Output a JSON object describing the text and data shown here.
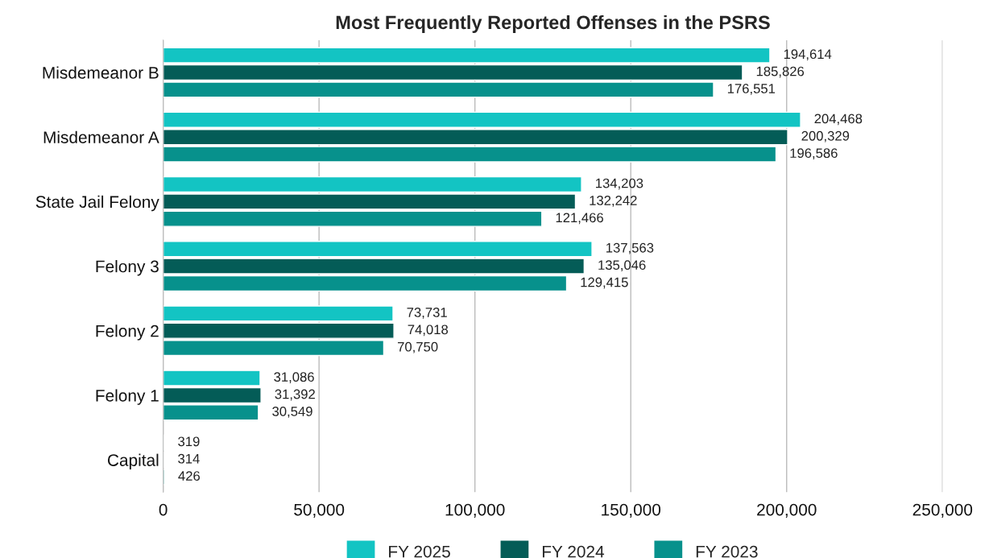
{
  "chart_data": {
    "type": "bar",
    "orientation": "horizontal",
    "title": "Most Frequently Reported Offenses in the PSRS",
    "categories": [
      "Misdemeanor B",
      "Misdemeanor A",
      "State Jail Felony",
      "Felony 3",
      "Felony 2",
      "Felony 1",
      "Capital"
    ],
    "series": [
      {
        "name": "FY 2025",
        "color": "#13c4c3",
        "values": [
          194614,
          204468,
          134203,
          137563,
          73731,
          31086,
          319
        ],
        "value_labels": [
          "194,614",
          "204,468",
          "134,203",
          "137,563",
          "73,731",
          "31,086",
          "319"
        ]
      },
      {
        "name": "FY 2024",
        "color": "#045c57",
        "values": [
          185826,
          200329,
          132242,
          135046,
          74018,
          31392,
          314
        ],
        "value_labels": [
          "185,826",
          "200,329",
          "132,242",
          "135,046",
          "74,018",
          "31,392",
          "314"
        ]
      },
      {
        "name": "FY 2023",
        "color": "#07918c",
        "values": [
          176551,
          196586,
          121466,
          129415,
          70750,
          30549,
          426
        ],
        "value_labels": [
          "176,551",
          "196,586",
          "121,466",
          "129,415",
          "70,750",
          "30,549",
          "426"
        ]
      }
    ],
    "xlim": [
      0,
      250000
    ],
    "xticks": [
      {
        "value": 0,
        "label": "0"
      },
      {
        "value": 50000,
        "label": "50,000"
      },
      {
        "value": 100000,
        "label": "100,000"
      },
      {
        "value": 150000,
        "label": "150,000"
      },
      {
        "value": 200000,
        "label": "200,000"
      },
      {
        "value": 250000,
        "label": "250,000"
      }
    ],
    "grid": "x",
    "legend": "bottom"
  }
}
